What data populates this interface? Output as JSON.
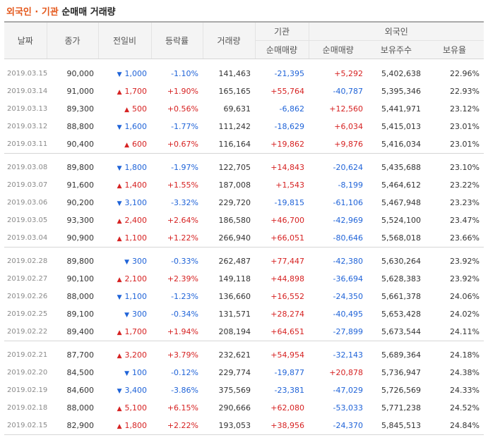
{
  "title": {
    "highlight": "외국인 · 기관",
    "rest": " 순매매 거래량"
  },
  "headers": {
    "date": "날짜",
    "close": "종가",
    "change": "전일비",
    "rate": "등락률",
    "volume": "거래량",
    "inst_group": "기관",
    "foreign_group": "외국인",
    "inst_net": "순매매량",
    "foreign_net": "순매매량",
    "holding": "보유주수",
    "ratio": "보유율"
  },
  "colors": {
    "up": "#d62222",
    "down": "#1f63d8",
    "accent": "#e4581c"
  },
  "groups": [
    [
      {
        "date": "2019.03.15",
        "close": "90,000",
        "dir": "down",
        "change": "1,000",
        "rate": "-1.10%",
        "volume": "141,463",
        "inst": "-21,395",
        "foreign": "+5,292",
        "holding": "5,402,638",
        "ratio": "22.96%"
      },
      {
        "date": "2019.03.14",
        "close": "91,000",
        "dir": "up",
        "change": "1,700",
        "rate": "+1.90%",
        "volume": "165,165",
        "inst": "+55,764",
        "foreign": "-40,787",
        "holding": "5,395,346",
        "ratio": "22.93%"
      },
      {
        "date": "2019.03.13",
        "close": "89,300",
        "dir": "up",
        "change": "500",
        "rate": "+0.56%",
        "volume": "69,631",
        "inst": "-6,862",
        "foreign": "+12,560",
        "holding": "5,441,971",
        "ratio": "23.12%"
      },
      {
        "date": "2019.03.12",
        "close": "88,800",
        "dir": "down",
        "change": "1,600",
        "rate": "-1.77%",
        "volume": "111,242",
        "inst": "-18,629",
        "foreign": "+6,034",
        "holding": "5,415,013",
        "ratio": "23.01%"
      },
      {
        "date": "2019.03.11",
        "close": "90,400",
        "dir": "up",
        "change": "600",
        "rate": "+0.67%",
        "volume": "116,164",
        "inst": "+19,862",
        "foreign": "+9,876",
        "holding": "5,416,034",
        "ratio": "23.01%"
      }
    ],
    [
      {
        "date": "2019.03.08",
        "close": "89,800",
        "dir": "down",
        "change": "1,800",
        "rate": "-1.97%",
        "volume": "122,705",
        "inst": "+14,843",
        "foreign": "-20,624",
        "holding": "5,435,688",
        "ratio": "23.10%"
      },
      {
        "date": "2019.03.07",
        "close": "91,600",
        "dir": "up",
        "change": "1,400",
        "rate": "+1.55%",
        "volume": "187,008",
        "inst": "+1,543",
        "foreign": "-8,199",
        "holding": "5,464,612",
        "ratio": "23.22%"
      },
      {
        "date": "2019.03.06",
        "close": "90,200",
        "dir": "down",
        "change": "3,100",
        "rate": "-3.32%",
        "volume": "229,720",
        "inst": "-19,815",
        "foreign": "-61,106",
        "holding": "5,467,948",
        "ratio": "23.23%"
      },
      {
        "date": "2019.03.05",
        "close": "93,300",
        "dir": "up",
        "change": "2,400",
        "rate": "+2.64%",
        "volume": "186,580",
        "inst": "+46,700",
        "foreign": "-42,969",
        "holding": "5,524,100",
        "ratio": "23.47%"
      },
      {
        "date": "2019.03.04",
        "close": "90,900",
        "dir": "up",
        "change": "1,100",
        "rate": "+1.22%",
        "volume": "266,940",
        "inst": "+66,051",
        "foreign": "-80,646",
        "holding": "5,568,018",
        "ratio": "23.66%"
      }
    ],
    [
      {
        "date": "2019.02.28",
        "close": "89,800",
        "dir": "down",
        "change": "300",
        "rate": "-0.33%",
        "volume": "262,487",
        "inst": "+77,447",
        "foreign": "-42,380",
        "holding": "5,630,264",
        "ratio": "23.92%"
      },
      {
        "date": "2019.02.27",
        "close": "90,100",
        "dir": "up",
        "change": "2,100",
        "rate": "+2.39%",
        "volume": "149,118",
        "inst": "+44,898",
        "foreign": "-36,694",
        "holding": "5,628,383",
        "ratio": "23.92%"
      },
      {
        "date": "2019.02.26",
        "close": "88,000",
        "dir": "down",
        "change": "1,100",
        "rate": "-1.23%",
        "volume": "136,660",
        "inst": "+16,552",
        "foreign": "-24,350",
        "holding": "5,661,378",
        "ratio": "24.06%"
      },
      {
        "date": "2019.02.25",
        "close": "89,100",
        "dir": "down",
        "change": "300",
        "rate": "-0.34%",
        "volume": "131,571",
        "inst": "+28,274",
        "foreign": "-40,495",
        "holding": "5,653,428",
        "ratio": "24.02%"
      },
      {
        "date": "2019.02.22",
        "close": "89,400",
        "dir": "up",
        "change": "1,700",
        "rate": "+1.94%",
        "volume": "208,194",
        "inst": "+64,651",
        "foreign": "-27,899",
        "holding": "5,673,544",
        "ratio": "24.11%"
      }
    ],
    [
      {
        "date": "2019.02.21",
        "close": "87,700",
        "dir": "up",
        "change": "3,200",
        "rate": "+3.79%",
        "volume": "232,621",
        "inst": "+54,954",
        "foreign": "-32,143",
        "holding": "5,689,364",
        "ratio": "24.18%"
      },
      {
        "date": "2019.02.20",
        "close": "84,500",
        "dir": "down",
        "change": "100",
        "rate": "-0.12%",
        "volume": "229,774",
        "inst": "-19,877",
        "foreign": "+20,878",
        "holding": "5,736,947",
        "ratio": "24.38%"
      },
      {
        "date": "2019.02.19",
        "close": "84,600",
        "dir": "down",
        "change": "3,400",
        "rate": "-3.86%",
        "volume": "375,569",
        "inst": "-23,381",
        "foreign": "-47,029",
        "holding": "5,726,569",
        "ratio": "24.33%"
      },
      {
        "date": "2019.02.18",
        "close": "88,000",
        "dir": "up",
        "change": "5,100",
        "rate": "+6.15%",
        "volume": "290,666",
        "inst": "+62,080",
        "foreign": "-53,033",
        "holding": "5,771,238",
        "ratio": "24.52%"
      },
      {
        "date": "2019.02.15",
        "close": "82,900",
        "dir": "up",
        "change": "1,800",
        "rate": "+2.22%",
        "volume": "193,053",
        "inst": "+38,956",
        "foreign": "-24,370",
        "holding": "5,845,513",
        "ratio": "24.84%"
      }
    ]
  ]
}
